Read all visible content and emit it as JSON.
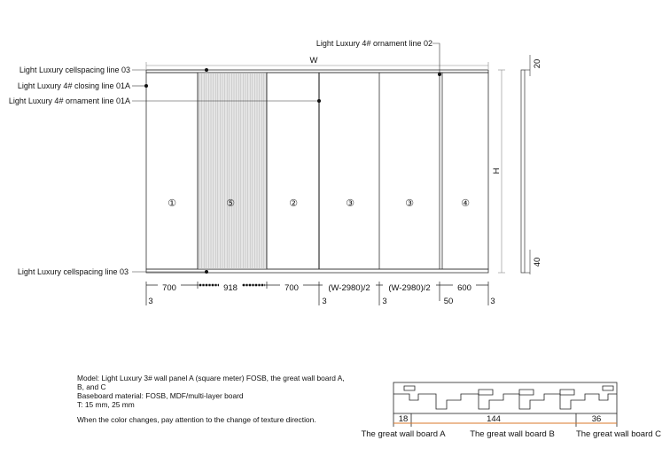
{
  "callouts": {
    "top_right": "Light Luxury 4# ornament line 02",
    "left_1": "Light Luxury cellspacing line 03",
    "left_2": "Light Luxury 4# closing line 01A",
    "left_3": "Light Luxury 4# ornament line 01A",
    "left_bottom": "Light Luxury cellspacing line 03"
  },
  "dimensions": {
    "width_label": "W",
    "height_label": "H",
    "top_strip": "20",
    "bottom_strip": "40",
    "bottom_row": [
      "700",
      "918",
      "700",
      "(W-2980)/2",
      "(W-2980)/2",
      "600"
    ],
    "gaps": [
      "3",
      "3",
      "3",
      "50",
      "3"
    ]
  },
  "panels": [
    "①",
    "⑤",
    "②",
    "③",
    "③",
    "④"
  ],
  "notes": {
    "line1": "Model: Light Luxury 3# wall panel A (square meter) FOSB, the great wall board A,",
    "line2": "B, and C",
    "line3": "Baseboard material: FOSB, MDF/multi-layer board",
    "line4": "T: 15 mm, 25 mm",
    "line5": "When the color changes, pay attention to the change of texture direction."
  },
  "section": {
    "dims": [
      "18",
      "144",
      "36"
    ],
    "labels": [
      "The great wall board A",
      "The great wall board B",
      "The great wall board C"
    ]
  },
  "colors": {
    "line": "#222222",
    "hatch": "#b8b8b8",
    "hatch_bg": "#e6e6e6",
    "dim_accent": "#d9772a"
  }
}
